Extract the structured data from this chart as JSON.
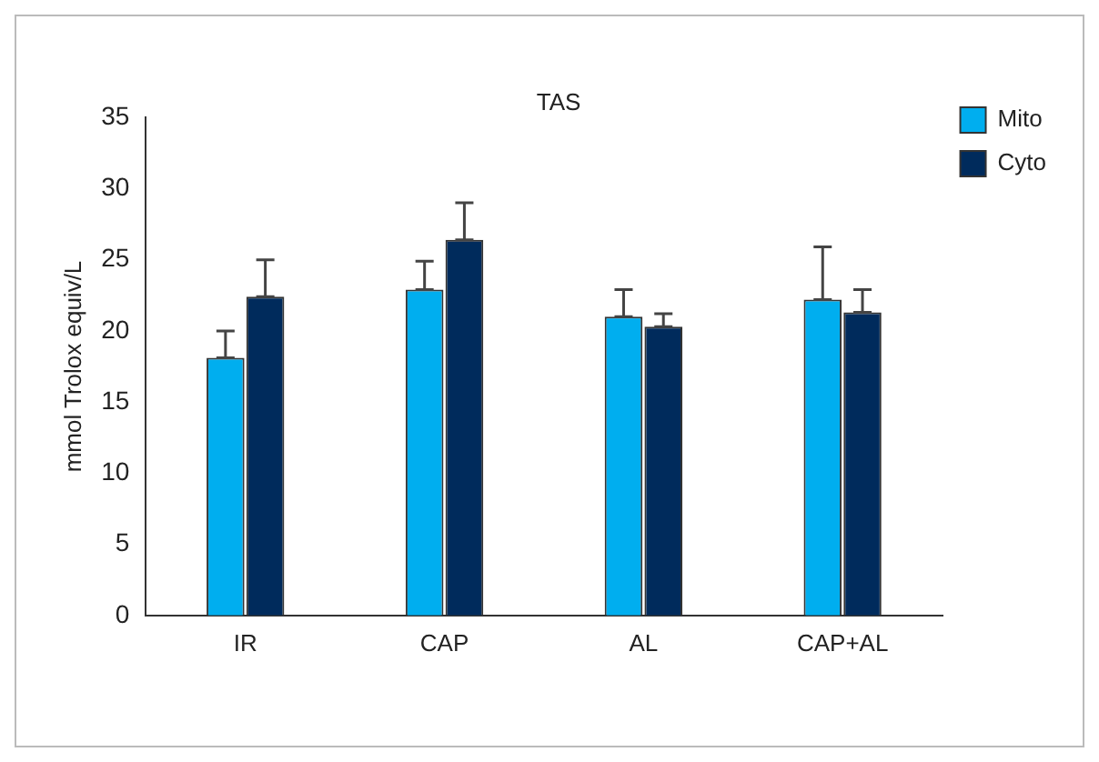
{
  "chart_data": {
    "type": "bar",
    "title": "TAS",
    "ylabel": "mmol Trolox equiv/L",
    "categories": [
      "IR",
      "CAP",
      "AL",
      "CAP+AL"
    ],
    "series": [
      {
        "name": "Mito",
        "color": "#00aeef",
        "values": [
          18.1,
          22.9,
          21.0,
          22.2
        ],
        "errors": [
          [
            18.1,
            20.0
          ],
          [
            22.9,
            24.9
          ],
          [
            21.0,
            22.9
          ],
          [
            22.2,
            25.9
          ]
        ]
      },
      {
        "name": "Cyto",
        "color": "#002b5c",
        "values": [
          22.4,
          26.4,
          20.3,
          21.3
        ],
        "errors": [
          [
            22.4,
            25.0
          ],
          [
            26.4,
            29.0
          ],
          [
            20.3,
            21.2
          ],
          [
            21.3,
            22.9
          ]
        ]
      }
    ],
    "ylim": [
      0,
      35
    ],
    "yticks": [
      0,
      5,
      10,
      15,
      20,
      25,
      30,
      35
    ],
    "grid": false,
    "legend": "top right"
  }
}
